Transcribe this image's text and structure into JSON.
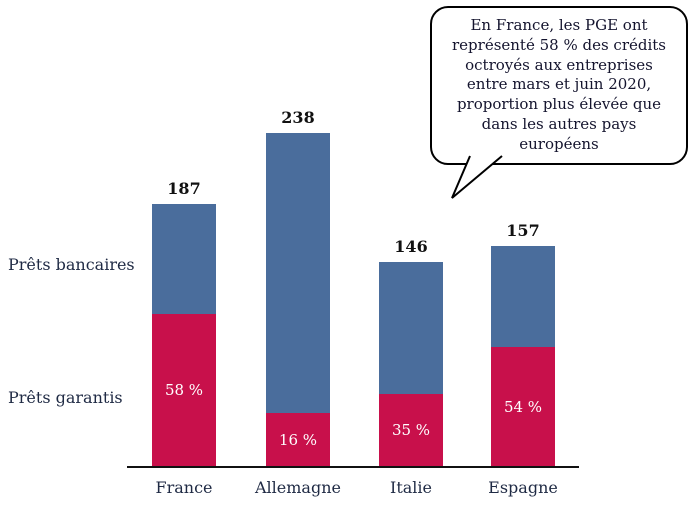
{
  "chart_data": {
    "type": "bar",
    "stacked": true,
    "title": "",
    "xlabel": "",
    "ylabel": "",
    "ylim": [
      0,
      250
    ],
    "grid": false,
    "categories": [
      "France",
      "Allemagne",
      "Italie",
      "Espagne"
    ],
    "totals": [
      187,
      238,
      146,
      157
    ],
    "guaranteed_pct": [
      58,
      16,
      35,
      54
    ],
    "segment_labels": [
      "58 %",
      "16 %",
      "35 %",
      "54 %"
    ],
    "series": [
      {
        "name": "Prêts garantis",
        "color": "#c8104b"
      },
      {
        "name": "Prêts bancaires",
        "color": "#4a6d9c"
      }
    ]
  },
  "labels": {
    "bank_loans": "Prêts bancaires",
    "guaranteed_loans": "Prêts garantis"
  },
  "callout": {
    "text": "En France, les PGE ont\nreprésenté 58 % des crédits\noctroyés aux entreprises\nentre mars et juin 2020,\nproportion plus élevée que\ndans les autres pays\neuropéens"
  },
  "colors": {
    "guaranteed": "#c8104b",
    "bank": "#4a6d9c",
    "axis": "#111111",
    "text_dark": "#1f2a44"
  }
}
